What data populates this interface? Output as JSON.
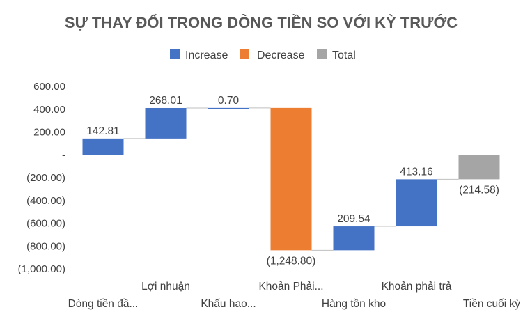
{
  "chart_data": {
    "type": "waterfall",
    "title": "SỰ THAY ĐỔI TRONG DÒNG TIỀN SO VỚI KỲ TRƯỚC",
    "legend": {
      "position": "top",
      "entries": [
        {
          "name": "Increase",
          "color": "#4472C4"
        },
        {
          "name": "Decrease",
          "color": "#ED7D31"
        },
        {
          "name": "Total",
          "color": "#A5A5A5"
        }
      ]
    },
    "ylim": [
      -1000,
      600
    ],
    "yticks": [
      600,
      400,
      200,
      0,
      -200,
      -400,
      -600,
      -800,
      -1000
    ],
    "ytick_labels": [
      "600.00",
      "400.00",
      "200.00",
      "-",
      "(200.00)",
      "(400.00)",
      "(600.00)",
      "(800.00)",
      "(1,000.00)"
    ],
    "categories": [
      "Dòng tiền đầ...",
      "Lợi nhuận",
      "Khấu hao...",
      "Khoản Phải...",
      "Hàng tồn kho",
      "Khoản phải trả",
      "Tiền cuối kỳ"
    ],
    "values": [
      142.81,
      268.01,
      0.7,
      -1248.8,
      209.54,
      413.16,
      -214.58
    ],
    "kinds": [
      "increase",
      "increase",
      "increase",
      "decrease",
      "increase",
      "increase",
      "total"
    ],
    "value_labels": [
      "142.81",
      "268.01",
      "0.70",
      "(1,248.80)",
      "209.54",
      "413.16",
      "(214.58)"
    ],
    "gridlines": false,
    "connector_lines": true
  }
}
